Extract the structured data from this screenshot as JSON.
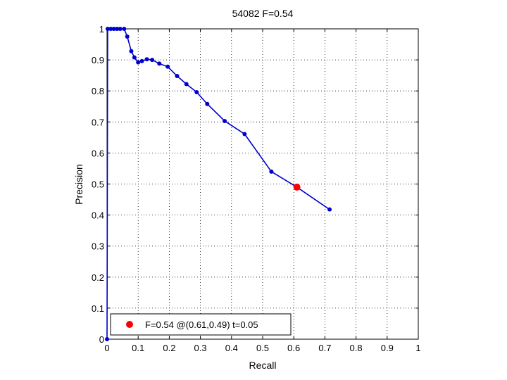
{
  "chart_data": {
    "type": "line",
    "title": "54082 F=0.54",
    "xlabel": "Recall",
    "ylabel": "Precision",
    "xlim": [
      0,
      1
    ],
    "ylim": [
      0,
      1
    ],
    "xticks": [
      "0",
      "0.1",
      "0.2",
      "0.3",
      "0.4",
      "0.5",
      "0.6",
      "0.7",
      "0.8",
      "0.9",
      "1"
    ],
    "yticks": [
      "0",
      "0.1",
      "0.2",
      "0.3",
      "0.4",
      "0.5",
      "0.6",
      "0.7",
      "0.8",
      "0.9",
      "1"
    ],
    "grid": true,
    "series": [
      {
        "color": "#0000cc",
        "points": [
          [
            0.0,
            0.0
          ],
          [
            0.002,
            1.0
          ],
          [
            0.012,
            1.0
          ],
          [
            0.022,
            1.0
          ],
          [
            0.032,
            1.0
          ],
          [
            0.042,
            1.0
          ],
          [
            0.055,
            1.0
          ],
          [
            0.065,
            0.975
          ],
          [
            0.078,
            0.928
          ],
          [
            0.088,
            0.908
          ],
          [
            0.1,
            0.892
          ],
          [
            0.112,
            0.896
          ],
          [
            0.128,
            0.902
          ],
          [
            0.145,
            0.9
          ],
          [
            0.168,
            0.888
          ],
          [
            0.195,
            0.878
          ],
          [
            0.225,
            0.848
          ],
          [
            0.255,
            0.822
          ],
          [
            0.288,
            0.796
          ],
          [
            0.322,
            0.758
          ],
          [
            0.378,
            0.703
          ],
          [
            0.442,
            0.661
          ],
          [
            0.528,
            0.54
          ],
          [
            0.61,
            0.49
          ],
          [
            0.715,
            0.418
          ]
        ]
      }
    ],
    "highlight_point": {
      "x": 0.61,
      "y": 0.49,
      "color": "#ff0000"
    },
    "legend": {
      "position": "bottom-left",
      "text": "F=0.54 @(0.61,0.49) t=0.05"
    }
  }
}
